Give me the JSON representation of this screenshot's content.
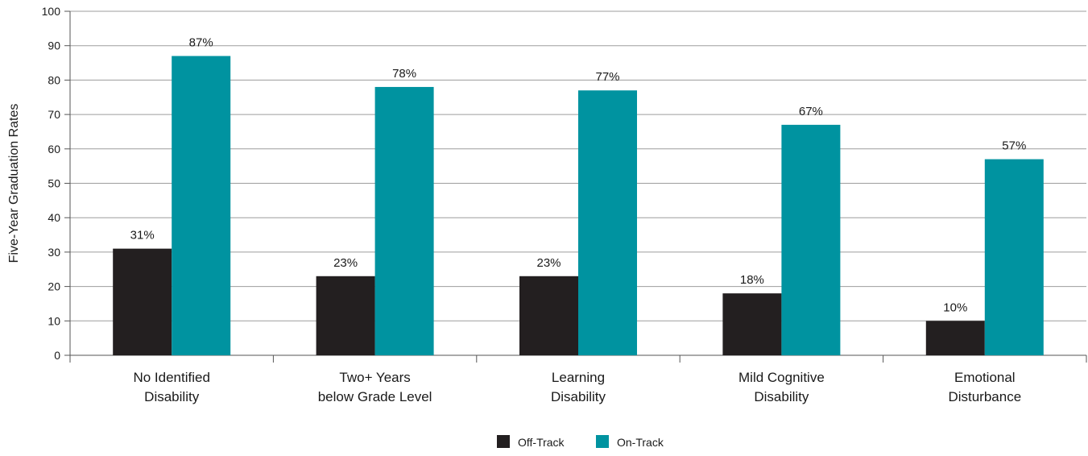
{
  "chart_data": {
    "type": "bar",
    "title": "",
    "xlabel": "",
    "ylabel": "Five-Year Graduation Rates",
    "ylim": [
      0,
      100
    ],
    "yticks": [
      0,
      10,
      20,
      30,
      40,
      50,
      60,
      70,
      80,
      90,
      100
    ],
    "grid": true,
    "legend_position": "bottom-center",
    "categories": [
      [
        "No Identified",
        "Disability"
      ],
      [
        "Two+ Years",
        "below Grade Level"
      ],
      [
        "Learning",
        "Disability"
      ],
      [
        "Mild Cognitive",
        "Disability"
      ],
      [
        "Emotional",
        "Disturbance"
      ]
    ],
    "series": [
      {
        "name": "Off-Track",
        "color": "#231f20",
        "values": [
          31,
          23,
          23,
          18,
          10
        ],
        "labels": [
          "31%",
          "23%",
          "23%",
          "18%",
          "10%"
        ]
      },
      {
        "name": "On-Track",
        "color": "#0093a0",
        "values": [
          87,
          78,
          77,
          67,
          57
        ],
        "labels": [
          "87%",
          "78%",
          "77%",
          "67%",
          "57%"
        ]
      }
    ]
  }
}
